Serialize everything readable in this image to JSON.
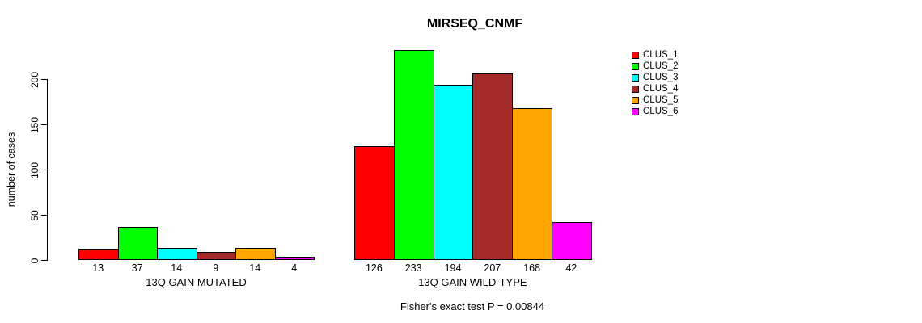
{
  "chart_data": {
    "type": "bar",
    "title": "MIRSEQ_CNMF",
    "ylabel": "number of cases",
    "xlabel": "",
    "yticks": [
      0,
      50,
      100,
      150,
      200
    ],
    "ylim": [
      0,
      233
    ],
    "grid": false,
    "legend": {
      "position": "right",
      "entries": [
        {
          "label": "CLUS_1",
          "color": "#FF0000"
        },
        {
          "label": "CLUS_2",
          "color": "#00FF00"
        },
        {
          "label": "CLUS_3",
          "color": "#00FFFF"
        },
        {
          "label": "CLUS_4",
          "color": "#A52A2A"
        },
        {
          "label": "CLUS_5",
          "color": "#FFA500"
        },
        {
          "label": "CLUS_6",
          "color": "#FF00FF"
        }
      ]
    },
    "groups": [
      {
        "label": "13Q GAIN MUTATED",
        "categories": [
          "CLUS_1",
          "CLUS_2",
          "CLUS_3",
          "CLUS_4",
          "CLUS_5",
          "CLUS_6"
        ],
        "values": [
          13,
          37,
          14,
          9,
          14,
          4
        ]
      },
      {
        "label": "13Q GAIN WILD-TYPE",
        "categories": [
          "CLUS_1",
          "CLUS_2",
          "CLUS_3",
          "CLUS_4",
          "CLUS_5",
          "CLUS_6"
        ],
        "values": [
          126,
          233,
          194,
          207,
          168,
          42
        ]
      }
    ],
    "annotation": "Fisher's exact test P = 0.00844"
  }
}
